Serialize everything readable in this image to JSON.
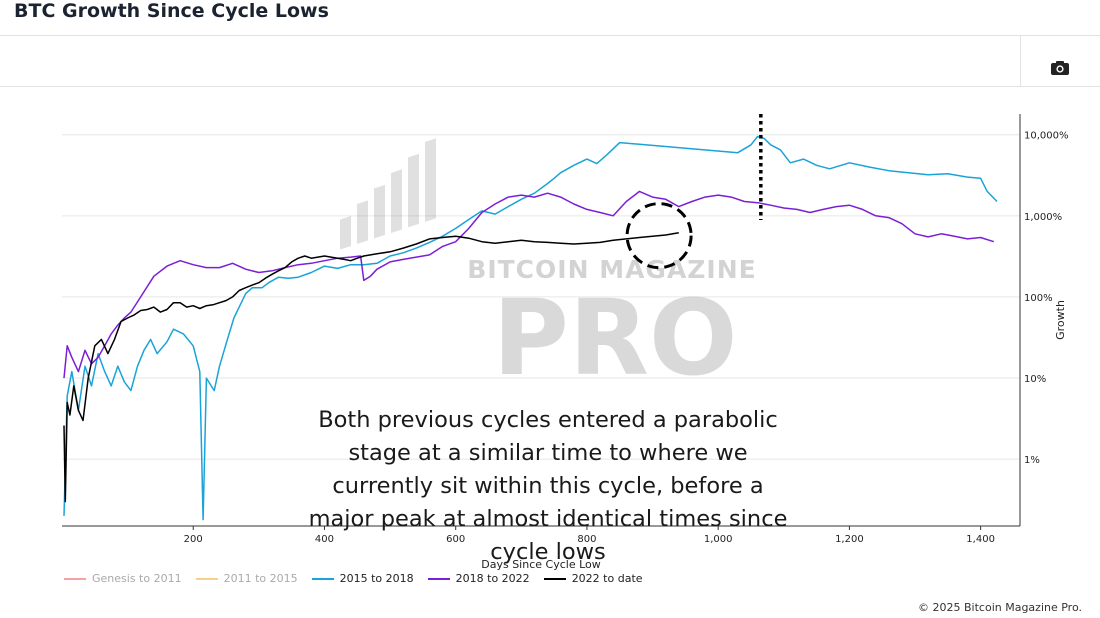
{
  "header": {
    "title": "BTC Growth Since Cycle Lows"
  },
  "toolbar": {
    "camera_icon": "camera-icon"
  },
  "watermark": {
    "line1": "BITCOIN MAGAZINE",
    "line2": "PRO"
  },
  "annotation": {
    "text": "Both previous cycles entered a parabolic stage at a similar time to where we currently sit within this cycle, before a major peak at almost identical times since cycle lows"
  },
  "copyright": "© 2025 Bitcoin Magazine Pro.",
  "chart_data": {
    "type": "line",
    "title": "BTC Growth Since Cycle Lows",
    "xlabel": "Days Since Cycle Low",
    "ylabel": "Growth",
    "yscale": "log",
    "xlim": [
      0,
      1460
    ],
    "ylim": [
      0.15,
      18000
    ],
    "x_ticks": [
      200,
      400,
      600,
      800,
      1000,
      1200,
      1400
    ],
    "x_tick_labels": [
      "200",
      "400",
      "600",
      "800",
      "1,000",
      "1,200",
      "1,400"
    ],
    "y_ticks": [
      1,
      10,
      100,
      1000,
      10000
    ],
    "y_tick_labels": [
      "1%",
      "10%",
      "100%",
      "1,000%",
      "10,000%"
    ],
    "legend_position": "bottom-left",
    "peak_marker_day": 1065,
    "highlight_circle": {
      "center_day": 910,
      "center_growth": 570
    },
    "series": [
      {
        "name": "Genesis to 2011",
        "color": "#f4a3a3",
        "visible": false,
        "points": []
      },
      {
        "name": "2011 to 2015",
        "color": "#f6cf8a",
        "visible": false,
        "points": []
      },
      {
        "name": "2015 to 2018",
        "color": "#1aa3d9",
        "visible": true,
        "points": [
          [
            3,
            0.2
          ],
          [
            8,
            6
          ],
          [
            15,
            12
          ],
          [
            25,
            4
          ],
          [
            35,
            14
          ],
          [
            45,
            8
          ],
          [
            55,
            20
          ],
          [
            65,
            12
          ],
          [
            75,
            8
          ],
          [
            85,
            14
          ],
          [
            95,
            9
          ],
          [
            105,
            7
          ],
          [
            115,
            14
          ],
          [
            125,
            22
          ],
          [
            135,
            30
          ],
          [
            145,
            20
          ],
          [
            160,
            28
          ],
          [
            170,
            40
          ],
          [
            185,
            35
          ],
          [
            200,
            25
          ],
          [
            210,
            12
          ],
          [
            215,
            0.18
          ],
          [
            220,
            10
          ],
          [
            232,
            7
          ],
          [
            240,
            14
          ],
          [
            252,
            30
          ],
          [
            262,
            55
          ],
          [
            270,
            75
          ],
          [
            280,
            110
          ],
          [
            290,
            130
          ],
          [
            305,
            130
          ],
          [
            315,
            150
          ],
          [
            330,
            175
          ],
          [
            345,
            170
          ],
          [
            360,
            175
          ],
          [
            380,
            200
          ],
          [
            400,
            240
          ],
          [
            420,
            225
          ],
          [
            440,
            250
          ],
          [
            460,
            250
          ],
          [
            480,
            260
          ],
          [
            500,
            320
          ],
          [
            520,
            350
          ],
          [
            540,
            400
          ],
          [
            560,
            470
          ],
          [
            580,
            560
          ],
          [
            600,
            700
          ],
          [
            620,
            900
          ],
          [
            640,
            1150
          ],
          [
            660,
            1050
          ],
          [
            680,
            1300
          ],
          [
            700,
            1600
          ],
          [
            720,
            1900
          ],
          [
            740,
            2500
          ],
          [
            750,
            2900
          ],
          [
            760,
            3400
          ],
          [
            780,
            4200
          ],
          [
            800,
            5000
          ],
          [
            815,
            4400
          ],
          [
            830,
            5600
          ],
          [
            850,
            8000
          ],
          [
            1030,
            6000
          ],
          [
            1050,
            7500
          ],
          [
            1060,
            9500
          ],
          [
            1070,
            9000
          ],
          [
            1080,
            7500
          ],
          [
            1095,
            6500
          ],
          [
            1110,
            4500
          ],
          [
            1130,
            5000
          ],
          [
            1150,
            4200
          ],
          [
            1170,
            3800
          ],
          [
            1200,
            4500
          ],
          [
            1230,
            4000
          ],
          [
            1260,
            3600
          ],
          [
            1290,
            3400
          ],
          [
            1320,
            3200
          ],
          [
            1350,
            3300
          ],
          [
            1380,
            3000
          ],
          [
            1400,
            2900
          ],
          [
            1410,
            2000
          ],
          [
            1425,
            1500
          ]
        ]
      },
      {
        "name": "2018 to 2022",
        "color": "#7b1fd6",
        "visible": true,
        "points": [
          [
            3,
            10
          ],
          [
            8,
            25
          ],
          [
            15,
            18
          ],
          [
            25,
            12
          ],
          [
            35,
            22
          ],
          [
            45,
            15
          ],
          [
            55,
            18
          ],
          [
            65,
            25
          ],
          [
            75,
            35
          ],
          [
            85,
            45
          ],
          [
            95,
            55
          ],
          [
            105,
            65
          ],
          [
            120,
            100
          ],
          [
            140,
            180
          ],
          [
            160,
            240
          ],
          [
            180,
            280
          ],
          [
            200,
            250
          ],
          [
            220,
            230
          ],
          [
            240,
            230
          ],
          [
            260,
            260
          ],
          [
            280,
            220
          ],
          [
            300,
            200
          ],
          [
            320,
            210
          ],
          [
            340,
            230
          ],
          [
            360,
            250
          ],
          [
            380,
            260
          ],
          [
            400,
            280
          ],
          [
            420,
            300
          ],
          [
            440,
            310
          ],
          [
            455,
            320
          ],
          [
            460,
            160
          ],
          [
            470,
            180
          ],
          [
            480,
            220
          ],
          [
            500,
            270
          ],
          [
            520,
            290
          ],
          [
            540,
            310
          ],
          [
            560,
            330
          ],
          [
            580,
            420
          ],
          [
            600,
            480
          ],
          [
            620,
            700
          ],
          [
            640,
            1100
          ],
          [
            660,
            1400
          ],
          [
            680,
            1700
          ],
          [
            700,
            1800
          ],
          [
            720,
            1700
          ],
          [
            740,
            1900
          ],
          [
            760,
            1700
          ],
          [
            780,
            1400
          ],
          [
            800,
            1200
          ],
          [
            820,
            1100
          ],
          [
            840,
            1000
          ],
          [
            860,
            1500
          ],
          [
            880,
            2000
          ],
          [
            900,
            1700
          ],
          [
            920,
            1600
          ],
          [
            940,
            1300
          ],
          [
            960,
            1500
          ],
          [
            980,
            1700
          ],
          [
            1000,
            1800
          ],
          [
            1020,
            1700
          ],
          [
            1040,
            1500
          ],
          [
            1060,
            1450
          ],
          [
            1080,
            1350
          ],
          [
            1100,
            1250
          ],
          [
            1120,
            1200
          ],
          [
            1140,
            1100
          ],
          [
            1160,
            1200
          ],
          [
            1180,
            1300
          ],
          [
            1200,
            1350
          ],
          [
            1220,
            1200
          ],
          [
            1240,
            1000
          ],
          [
            1260,
            950
          ],
          [
            1280,
            800
          ],
          [
            1300,
            600
          ],
          [
            1320,
            550
          ],
          [
            1340,
            600
          ],
          [
            1360,
            560
          ],
          [
            1380,
            520
          ],
          [
            1400,
            540
          ],
          [
            1420,
            480
          ]
        ]
      },
      {
        "name": "2022 to date",
        "color": "#000000",
        "visible": true,
        "points": [
          [
            3,
            2.6
          ],
          [
            5,
            0.3
          ],
          [
            8,
            5
          ],
          [
            12,
            3.5
          ],
          [
            18,
            8
          ],
          [
            25,
            4
          ],
          [
            32,
            3
          ],
          [
            40,
            10
          ],
          [
            50,
            25
          ],
          [
            60,
            30
          ],
          [
            70,
            20
          ],
          [
            80,
            30
          ],
          [
            90,
            50
          ],
          [
            100,
            55
          ],
          [
            110,
            60
          ],
          [
            120,
            68
          ],
          [
            130,
            70
          ],
          [
            140,
            75
          ],
          [
            150,
            65
          ],
          [
            160,
            70
          ],
          [
            170,
            85
          ],
          [
            180,
            85
          ],
          [
            190,
            75
          ],
          [
            200,
            78
          ],
          [
            210,
            72
          ],
          [
            220,
            78
          ],
          [
            230,
            80
          ],
          [
            240,
            85
          ],
          [
            250,
            90
          ],
          [
            260,
            100
          ],
          [
            270,
            120
          ],
          [
            280,
            130
          ],
          [
            290,
            140
          ],
          [
            300,
            150
          ],
          [
            310,
            170
          ],
          [
            320,
            190
          ],
          [
            330,
            210
          ],
          [
            340,
            230
          ],
          [
            350,
            270
          ],
          [
            360,
            300
          ],
          [
            370,
            320
          ],
          [
            380,
            300
          ],
          [
            390,
            310
          ],
          [
            400,
            320
          ],
          [
            410,
            310
          ],
          [
            420,
            300
          ],
          [
            430,
            290
          ],
          [
            440,
            280
          ],
          [
            450,
            300
          ],
          [
            460,
            320
          ],
          [
            480,
            340
          ],
          [
            500,
            360
          ],
          [
            520,
            400
          ],
          [
            540,
            450
          ],
          [
            560,
            520
          ],
          [
            580,
            540
          ],
          [
            600,
            560
          ],
          [
            620,
            530
          ],
          [
            640,
            480
          ],
          [
            660,
            460
          ],
          [
            680,
            480
          ],
          [
            700,
            500
          ],
          [
            720,
            480
          ],
          [
            740,
            470
          ],
          [
            760,
            460
          ],
          [
            780,
            450
          ],
          [
            800,
            460
          ],
          [
            820,
            470
          ],
          [
            840,
            500
          ],
          [
            860,
            520
          ],
          [
            880,
            540
          ],
          [
            900,
            560
          ],
          [
            920,
            580
          ],
          [
            940,
            620
          ]
        ]
      }
    ]
  }
}
